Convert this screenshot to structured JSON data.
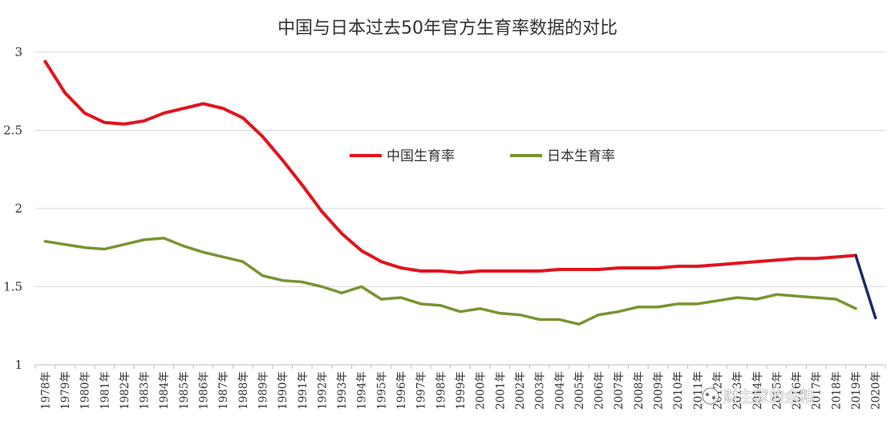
{
  "chart_data": {
    "type": "line",
    "title": "中国与日本过去50年官方生育率数据的对比",
    "xlabel": "",
    "ylabel": "",
    "ylim": [
      1,
      3
    ],
    "yticks": [
      "1",
      "1.5",
      "2",
      "2.5",
      "3"
    ],
    "grid": "horizontal",
    "legend_position": "top-center",
    "x": [
      "1978年",
      "1979年",
      "1980年",
      "1981年",
      "1982年",
      "1983年",
      "1984年",
      "1985年",
      "1986年",
      "1987年",
      "1988年",
      "1989年",
      "1990年",
      "1991年",
      "1992年",
      "1993年",
      "1994年",
      "1995年",
      "1996年",
      "1997年",
      "1998年",
      "1999年",
      "2000年",
      "2001年",
      "2002年",
      "2003年",
      "2004年",
      "2005年",
      "2006年",
      "2007年",
      "2008年",
      "2009年",
      "2010年",
      "2011年",
      "2012年",
      "2013年",
      "2014年",
      "2015年",
      "2016年",
      "2017年",
      "2018年",
      "2019年",
      "2020年"
    ],
    "series": [
      {
        "name": "中国生育率",
        "color": "#e0141e",
        "values": [
          2.94,
          2.74,
          2.61,
          2.55,
          2.54,
          2.56,
          2.61,
          2.64,
          2.67,
          2.64,
          2.58,
          2.46,
          2.31,
          2.15,
          1.98,
          1.84,
          1.73,
          1.66,
          1.62,
          1.6,
          1.6,
          1.59,
          1.6,
          1.6,
          1.6,
          1.6,
          1.61,
          1.61,
          1.61,
          1.62,
          1.62,
          1.62,
          1.63,
          1.63,
          1.64,
          1.65,
          1.66,
          1.67,
          1.68,
          1.68,
          1.69,
          1.7,
          null
        ]
      },
      {
        "name": "日本生育率",
        "color": "#7a9431",
        "values": [
          1.79,
          1.77,
          1.75,
          1.74,
          1.77,
          1.8,
          1.81,
          1.76,
          1.72,
          1.69,
          1.66,
          1.57,
          1.54,
          1.53,
          1.5,
          1.46,
          1.5,
          1.42,
          1.43,
          1.39,
          1.38,
          1.34,
          1.36,
          1.33,
          1.32,
          1.29,
          1.29,
          1.26,
          1.32,
          1.34,
          1.37,
          1.37,
          1.39,
          1.39,
          1.41,
          1.43,
          1.42,
          1.45,
          1.44,
          1.43,
          1.42,
          1.36,
          null
        ]
      },
      {
        "name": "",
        "color": "#1f2a66",
        "values": [
          null,
          null,
          null,
          null,
          null,
          null,
          null,
          null,
          null,
          null,
          null,
          null,
          null,
          null,
          null,
          null,
          null,
          null,
          null,
          null,
          null,
          null,
          null,
          null,
          null,
          null,
          null,
          null,
          null,
          null,
          null,
          null,
          null,
          null,
          null,
          null,
          null,
          null,
          null,
          null,
          null,
          1.7,
          1.3
        ]
      }
    ],
    "legend": [
      "中国生育率",
      "日本生育率"
    ],
    "watermark": "财主家的余粮"
  }
}
